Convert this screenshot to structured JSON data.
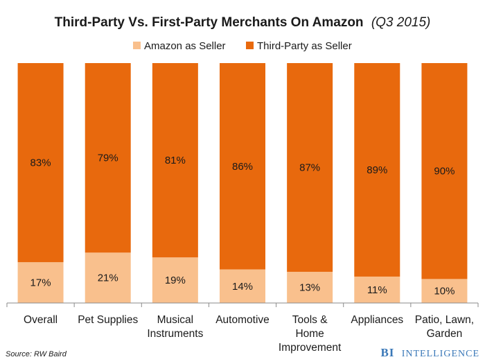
{
  "chart_data": {
    "type": "bar",
    "stacked": true,
    "percent": true,
    "title": "Third-Party Vs. First-Party Merchants On Amazon",
    "subtitle": "(Q3 2015)",
    "categories": [
      [
        "Overall"
      ],
      [
        "Pet Supplies"
      ],
      [
        "Musical",
        "Instruments"
      ],
      [
        "Automotive"
      ],
      [
        "Tools &",
        "Home",
        "Improvement"
      ],
      [
        "Appliances"
      ],
      [
        "Patio, Lawn,",
        "Garden"
      ]
    ],
    "series": [
      {
        "name": "Amazon as Seller",
        "color": "#f9c08d",
        "values": [
          17,
          21,
          19,
          14,
          13,
          11,
          10
        ],
        "labels": [
          "17%",
          "21%",
          "19%",
          "14%",
          "13%",
          "11%",
          "10%"
        ]
      },
      {
        "name": "Third-Party as Seller",
        "color": "#e8690d",
        "values": [
          83,
          79,
          81,
          86,
          87,
          89,
          90
        ],
        "labels": [
          "83%",
          "79%",
          "81%",
          "86%",
          "87%",
          "89%",
          "90%"
        ]
      }
    ],
    "ylim": [
      0,
      100
    ],
    "legend_position": "top-center",
    "grid": false,
    "xlabel": "",
    "ylabel": ""
  },
  "footer": {
    "source": "Source: RW Baird",
    "brand_bi": "BI",
    "brand_rest": "INTELLIGENCE"
  }
}
